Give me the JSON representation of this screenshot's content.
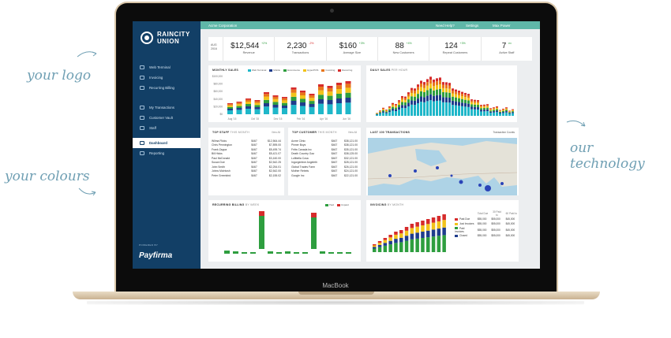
{
  "annotations": {
    "logo": "your logo",
    "colours": "your colours",
    "technology": "our technology"
  },
  "laptop_brand": "MacBook",
  "colors": {
    "sidebar": "#123f66",
    "topbar": "#5fb7a8",
    "series": [
      "#1fb7c9",
      "#1f3c8c",
      "#2e9e3f",
      "#f2c31a",
      "#e8761b",
      "#d62b2b"
    ]
  },
  "sidebar": {
    "logo_line1": "RAINCITY",
    "logo_line2": "UNION",
    "items": [
      {
        "label": "Web Terminal",
        "icon": "terminal-icon"
      },
      {
        "label": "Invoicing",
        "icon": "invoice-icon"
      },
      {
        "label": "Recurring Billing",
        "icon": "recurring-icon"
      },
      {
        "label": "My Transactions",
        "icon": "transactions-icon"
      },
      {
        "label": "Customer Vault",
        "icon": "vault-icon"
      },
      {
        "label": "Staff",
        "icon": "staff-icon"
      },
      {
        "label": "Dashboard",
        "icon": "dashboard-icon",
        "active": true
      },
      {
        "label": "Reporting",
        "icon": "reporting-icon"
      }
    ],
    "powered_by": "POWERED BY",
    "payfirma": "Payfirma"
  },
  "topbar": {
    "org": "Acme Corporation",
    "help": "Need Help?",
    "settings": "Settings",
    "user": "Max Power"
  },
  "kpis": {
    "date_month": "AUG",
    "date_year": "2016",
    "items": [
      {
        "value": "$12,544",
        "change": "+2%",
        "label": "Revenue",
        "up": true
      },
      {
        "value": "2,230",
        "change": "-2%",
        "label": "Transactions",
        "up": false
      },
      {
        "value": "$160",
        "change": "+3%",
        "label": "Average Size",
        "up": true
      },
      {
        "value": "88",
        "change": "+4%",
        "label": "New Customers",
        "up": true
      },
      {
        "value": "124",
        "change": "+3%",
        "label": "Repeat Customers",
        "up": true
      },
      {
        "value": "7",
        "change": "ex",
        "label": "Active Staff",
        "up": true
      }
    ]
  },
  "monthly_sales": {
    "title": "MONTHLY SALES",
    "legend": [
      "Web Terminal",
      "Mobile",
      "Ecommerce",
      "HyperPOS",
      "Invoicing",
      "Recurring"
    ],
    "y_ticks": [
      "$100,000",
      "$80,000",
      "$60,000",
      "$40,000",
      "$20,000",
      "$0"
    ],
    "x_ticks": [
      "Aug '15",
      "Oct '15",
      "Dec '15",
      "Feb '16",
      "Apr '16",
      "Jun '16"
    ]
  },
  "daily_sales": {
    "title": "DAILY SALES",
    "subtitle": "PER HOUR"
  },
  "top_staff": {
    "title": "TOP STAFF",
    "subtitle": "THIS MONTH",
    "link": "View All",
    "rows": [
      {
        "name": "Wilma Flicks",
        "a": "$467",
        "b": "$12,564.44"
      },
      {
        "name": "Chris Pennington",
        "a": "$467",
        "b": "$7,895.00"
      },
      {
        "name": "Frank Zappa",
        "a": "$467",
        "b": "$5,495.74"
      },
      {
        "name": "Bill Hicks",
        "a": "$467",
        "b": "$5,421.07"
      },
      {
        "name": "Paul McDonald",
        "a": "$467",
        "b": "$3,160.00"
      },
      {
        "name": "Susan Doe",
        "a": "$467",
        "b": "$2,542.25"
      },
      {
        "name": "John Smith",
        "a": "$467",
        "b": "$2,254.01"
      },
      {
        "name": "Johns McIntosh",
        "a": "$467",
        "b": "$2,542.00"
      },
      {
        "name": "Peter Greenbird",
        "a": "$467",
        "b": "$2,155.02"
      }
    ]
  },
  "top_customers": {
    "title": "TOP CUSTOMER",
    "subtitle": "THIS MONTH",
    "link": "View All",
    "rows": [
      {
        "name": "Acme Clinic",
        "a": "$467",
        "b": "$38,121.00"
      },
      {
        "name": "Pinner Boys",
        "a": "$467",
        "b": "$38,121.00"
      },
      {
        "name": "Fritts Canada Inc",
        "a": "$467",
        "b": "$35,121.00"
      },
      {
        "name": "Death Country Gaz",
        "a": "$467",
        "b": "$38,125.00"
      },
      {
        "name": "Luftbella Cosa",
        "a": "$467",
        "b": "$32,121.00"
      },
      {
        "name": "Ingorgentine Angeleth",
        "a": "$467",
        "b": "$28,121.00"
      },
      {
        "name": "Global Trades Farm",
        "a": "$467",
        "b": "$26,121.00"
      },
      {
        "name": "Mother Rebels",
        "a": "$467",
        "b": "$24,121.00"
      },
      {
        "name": "Google Inc",
        "a": "$467",
        "b": "$22,121.00"
      }
    ]
  },
  "map_card": {
    "title": "LAST 100 TRANSACTIONS",
    "control": "Transaction Counts"
  },
  "recurring": {
    "title": "RECURRING BILLING",
    "subtitle": "BY WEEK",
    "legend": [
      "Paid",
      "Unpaid"
    ]
  },
  "invoicing": {
    "title": "INVOICING",
    "subtitle": "BY MONTH",
    "table_headers": [
      "Total Due",
      "30 Paid to",
      "60 Paid to"
    ],
    "rows": [
      {
        "label": "Past Due",
        "a": "$55,000",
        "b": "$45,000",
        "color": "#d62b2b"
      },
      {
        "label": "Just Invoices",
        "a": "$55,000",
        "b": "$45,000",
        "color": "#f2c31a"
      },
      {
        "label": "Paid Invoices",
        "a": "$55,000",
        "b": "$45,000",
        "color": "#2e9e3f"
      },
      {
        "label": "Closed",
        "a": "$55,000",
        "b": "$45,000",
        "color": "#1f3c8c"
      }
    ]
  }
}
